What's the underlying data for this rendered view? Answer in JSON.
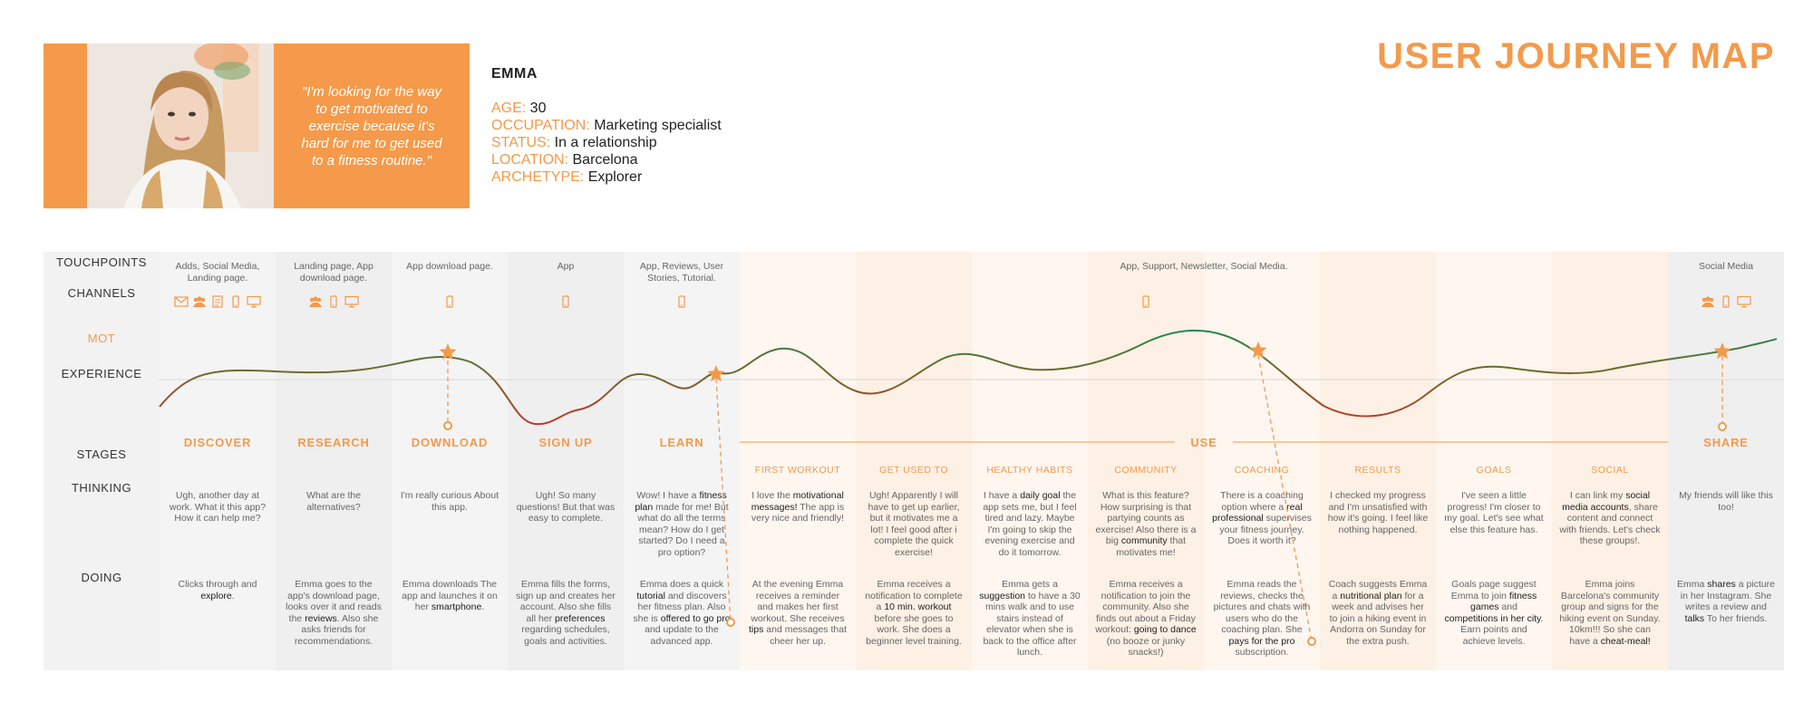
{
  "title": "USER JOURNEY MAP",
  "persona": {
    "name": "EMMA",
    "quote": "\"I'm looking for the way to get motivated to exercise because it's hard for me to get used to a fitness routine.\"",
    "fields": [
      {
        "key": "AGE:",
        "value": "30"
      },
      {
        "key": "OCCUPATION:",
        "value": "Marketing specialist"
      },
      {
        "key": "STATUS:",
        "value": "In a relationship"
      },
      {
        "key": "LOCATION:",
        "value": "Barcelona"
      },
      {
        "key": "ARCHETYPE:",
        "value": "Explorer"
      }
    ]
  },
  "row_labels": {
    "touchpoints": "TOUCHPOINTS",
    "channels": "CHANNELS",
    "mot": "MOT",
    "experience": "EXPERIENCE",
    "stages": "STAGES",
    "thinking": "THINKING",
    "doing": "DOING"
  },
  "use_stage": "USE",
  "use_touchpoints": "App, Support, Newsletter, Social Media.",
  "columns": [
    {
      "stage": "DISCOVER",
      "touchpoints": "Adds, Social Media, Landing page.",
      "channels": [
        "mail-icon",
        "people-icon",
        "document-icon",
        "phone-icon",
        "desktop-icon"
      ],
      "thinking": "Ugh, another day at work. What it this app? How it can help me?",
      "doing": "Clicks through and <b>explore</b>."
    },
    {
      "stage": "RESEARCH",
      "touchpoints": "Landing page, App download page.",
      "channels": [
        "people-icon",
        "phone-icon",
        "desktop-icon"
      ],
      "thinking": "What are the alternatives?",
      "doing": "Emma goes to the app's download page, looks over it and reads the <b>reviews</b>. Also she asks friends for recommendations."
    },
    {
      "stage": "DOWNLOAD",
      "touchpoints": "App download page.",
      "channels": [
        "phone-icon"
      ],
      "thinking": "I'm really curious About this app.",
      "doing": "Emma downloads The app and launches it on her <b>smartphone</b>."
    },
    {
      "stage": "SIGN UP",
      "touchpoints": "App",
      "channels": [
        "phone-icon"
      ],
      "thinking": "Ugh! So many questions! But that was easy to complete.",
      "doing": "Emma fills the forms, sign up and creates her account. Also she fills all her <b>preferences</b> regarding schedules, goals and activities."
    },
    {
      "stage": "LEARN",
      "touchpoints": "App, Reviews, User Stories, Tutorial.",
      "channels": [
        "phone-icon"
      ],
      "thinking": "Wow! I have a <b>fitness plan</b> made for me! But what do all the terms mean? How do I get started? Do I need a pro option?",
      "doing": "Emma does a quick <b>tutorial</b> and discovers her fitness plan. Also she is <b>offered to go pro</b> and update to the advanced app."
    },
    {
      "substage": "FIRST WORKOUT",
      "thinking": "I love the <b>motivational messages!</b> The app is very nice and friendly!",
      "doing": "At the evening Emma receives a reminder and makes her first workout. She receives <b>tips</b> and messages that cheer her up."
    },
    {
      "substage": "GET USED TO",
      "thinking": "Ugh! Apparently I will have to get up earlier, but it motivates me a lot! I feel good after i complete the quick exercise!",
      "doing": "Emma receives a notification to complete a <b>10 min. workout</b> before she goes to work. She does a beginner level training."
    },
    {
      "substage": "HEALTHY HABITS",
      "thinking": "I have a <b>daily goal</b> the app sets me, but I feel tired and lazy. Maybe I'm going to skip the evening exercise and do it tomorrow.",
      "doing": "Emma gets a <b>suggestion</b> to have a 30 mins walk and to use stairs instead of elevator when she is back to the office after lunch."
    },
    {
      "substage": "COMMUNITY",
      "channels": [
        "phone-icon"
      ],
      "thinking": "What is this feature? How surprising is that partying counts as exercise! Also there is a big <b>community</b> that motivates me!",
      "doing": "Emma receives a notification to join the community. Also she finds out about a Friday workout: <b>going to dance</b> (no booze or junky snacks!)"
    },
    {
      "substage": "COACHING",
      "thinking": "There is a coaching option where a <b>real professional</b> supervises your fitness journey. Does it worth it?",
      "doing": "Emma reads the reviews, checks the pictures and chats with users who do the coaching plan. She <b>pays for the pro</b> subscription."
    },
    {
      "substage": "RESULTS",
      "thinking": "I checked my progress and I'm unsatisfied with how it's going. I feel like nothing happened.",
      "doing": "Coach suggests Emma a <b>nutritional plan</b> for a week and advises her to join a hiking event in Andorra on Sunday for the extra push."
    },
    {
      "substage": "GOALS",
      "thinking": "I've seen a little progress! I'm closer to my goal. Let's see what else this feature has.",
      "doing": "Goals page suggest Emma to join <b>fitness games</b> and <b>competitions in her city</b>. Earn points and achieve levels."
    },
    {
      "substage": "SOCIAL",
      "thinking": "I can link my <b>social media accounts</b>, share content and connect with friends. Let's check these groups!.",
      "doing": "Emma joins Barcelona's community group and signs for the hiking event on Sunday. 10km!!! So she can have a <b>cheat-meal!</b>"
    },
    {
      "stage": "SHARE",
      "touchpoints": "Social Media",
      "channels": [
        "people-icon",
        "phone-icon",
        "desktop-icon"
      ],
      "thinking": "My friends will like this too!",
      "doing": "Emma <b>shares</b> a picture in her Instagram. She writes a review and <b>talks</b> To her friends."
    }
  ],
  "colors": {
    "accent": "#f39a4b",
    "positive": "#1e8a5a",
    "negative": "#c0392b",
    "use_bg": "#fdf3ea",
    "gray_bg": "#f2f2f2"
  }
}
